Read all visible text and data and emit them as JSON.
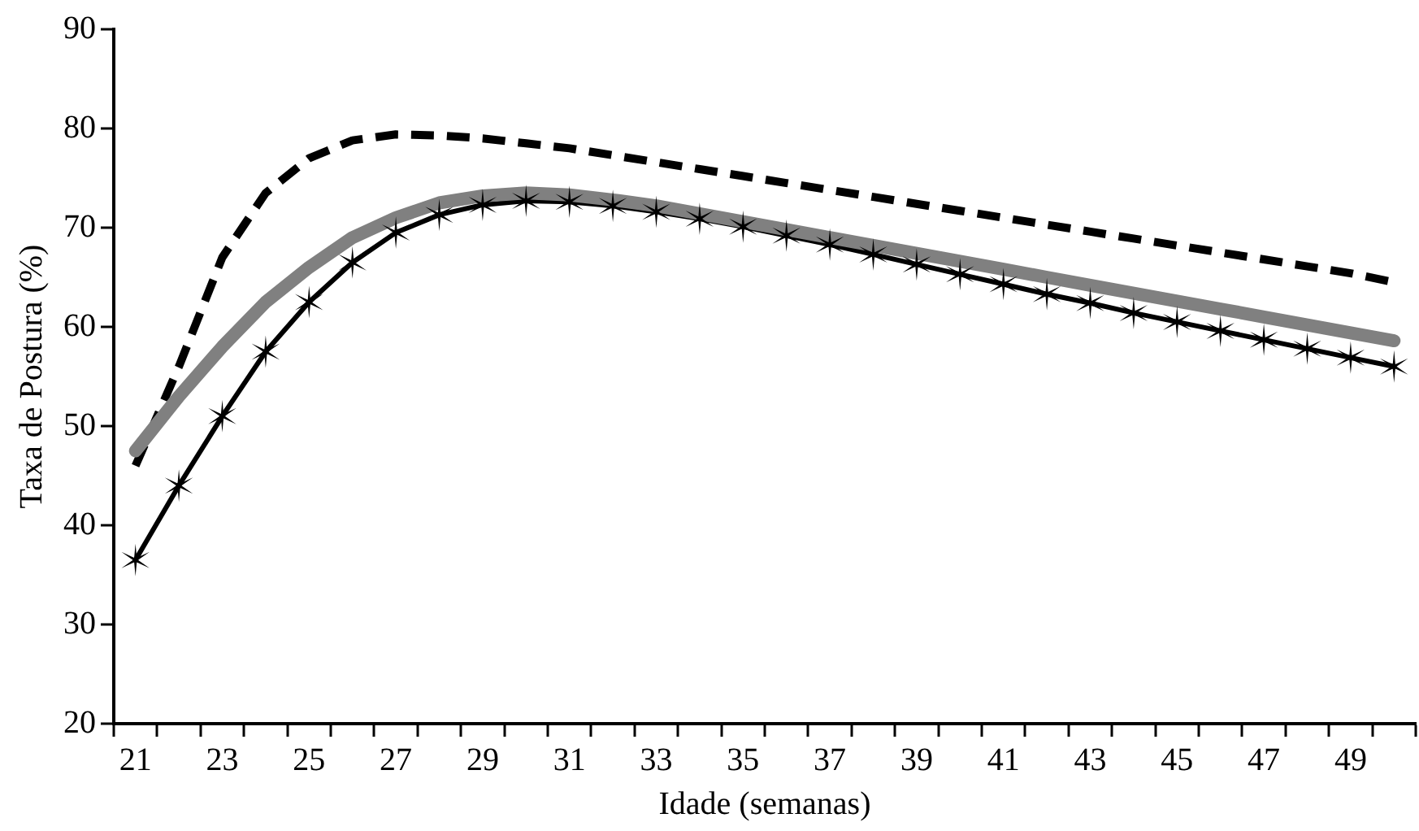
{
  "chart_data": {
    "type": "line",
    "xlabel": "Idade (semanas)",
    "ylabel": "Taxa de Postura (%)",
    "categories": [
      "21",
      null,
      "23",
      null,
      "25",
      null,
      "27",
      null,
      "29",
      null,
      "31",
      null,
      "33",
      null,
      "35",
      null,
      "37",
      null,
      "39",
      null,
      "41",
      null,
      "43",
      null,
      "45",
      null,
      "47",
      null,
      "49",
      null
    ],
    "ylim": [
      20,
      90
    ],
    "yticks": [
      20,
      30,
      40,
      50,
      60,
      70,
      80,
      90
    ],
    "grid": false,
    "legend": false,
    "series": [
      {
        "color": "#808080",
        "marker": "none",
        "line_style": "solid",
        "values": [
          47.5,
          53,
          58,
          62.5,
          66,
          69,
          71,
          72.5,
          73.2,
          73.5,
          73.3,
          72.8,
          72.2,
          71.4,
          70.6,
          69.8,
          69,
          68.2,
          67.4,
          66.6,
          65.8,
          65,
          64.2,
          63.4,
          62.6,
          61.8,
          61,
          60.2,
          59.4,
          58.6
        ]
      },
      {
        "color": "#000000",
        "marker": "none",
        "line_style": "dashed",
        "values": [
          46,
          56,
          67,
          73.5,
          77,
          78.8,
          79.4,
          79.3,
          79,
          78.5,
          78,
          77.3,
          76.6,
          75.9,
          75.2,
          74.5,
          73.8,
          73.1,
          72.4,
          71.7,
          71,
          70.3,
          69.6,
          68.9,
          68.2,
          67.5,
          66.8,
          66.1,
          65.4,
          64.5
        ]
      },
      {
        "color": "#000000",
        "marker": "cross",
        "line_style": "solid",
        "values": [
          36.5,
          44,
          51,
          57.5,
          62.5,
          66.5,
          69.5,
          71.3,
          72.3,
          72.7,
          72.6,
          72.2,
          71.6,
          70.9,
          70.1,
          69.2,
          68.3,
          67.3,
          66.3,
          65.3,
          64.3,
          63.3,
          62.4,
          61.4,
          60.5,
          59.6,
          58.7,
          57.8,
          56.9,
          56
        ]
      }
    ]
  }
}
